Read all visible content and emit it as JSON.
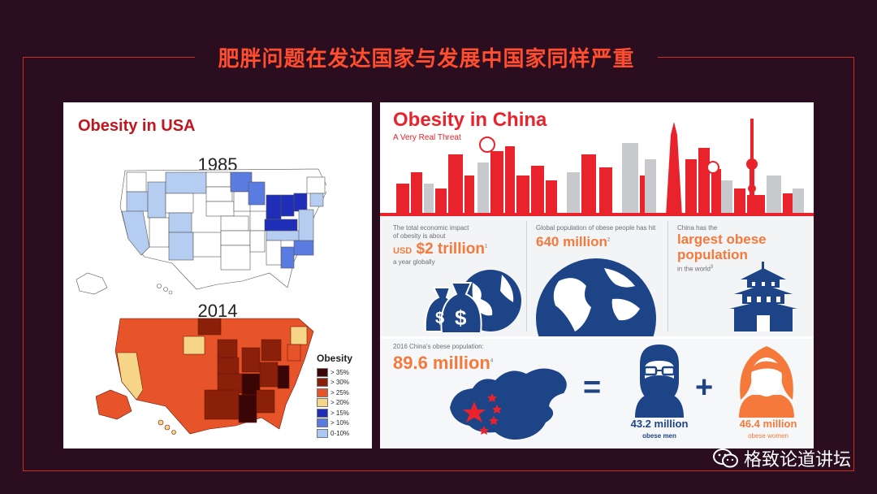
{
  "slide": {
    "title": "肥胖问题在发达国家与发展中国家同样严重",
    "colors": {
      "background": "#2a0d1f",
      "accent": "#ff4d2e",
      "frame": "#c5301f"
    }
  },
  "usa": {
    "title": "Obesity in USA",
    "year_top": "1985",
    "year_bottom": "2014",
    "legend": {
      "title": "Obesity",
      "items": [
        {
          "label": "> 35%",
          "color": "#3a0505"
        },
        {
          "label": "> 30%",
          "color": "#8a1f0a"
        },
        {
          "label": "> 25%",
          "color": "#e8542a"
        },
        {
          "label": "> 20%",
          "color": "#f6d488"
        },
        {
          "label": "> 15%",
          "color": "#1f2eb8"
        },
        {
          "label": "> 10%",
          "color": "#5a7be0"
        },
        {
          "label": "0-10%",
          "color": "#a9c8f2"
        }
      ]
    }
  },
  "china": {
    "title": "Obesity in China",
    "subtitle": "A Very Real Threat",
    "stat1": {
      "intro_line1": "The total economic impact",
      "intro_line2": "of obesity is about",
      "prefix": "USD",
      "value": "$2 trillion",
      "suffix": "a year globally",
      "note": "1"
    },
    "stat2": {
      "intro": "Global population of obese people has hit",
      "value": "640 million",
      "note": "2"
    },
    "stat3": {
      "intro": "China has the",
      "value_line1": "largest obese",
      "value_line2": "population",
      "suffix": "in the world",
      "note": "3"
    },
    "stat4": {
      "intro": "2016 China's obese population:",
      "value": "89.6 million",
      "note": "4"
    },
    "equals": "=",
    "plus": "+",
    "men": {
      "value": "43.2 million",
      "label": "obese men"
    },
    "women": {
      "value": "46.4 million",
      "label": "obese women"
    }
  },
  "watermark": {
    "text": "格致论道讲坛",
    "icon": "wechat-icon"
  }
}
